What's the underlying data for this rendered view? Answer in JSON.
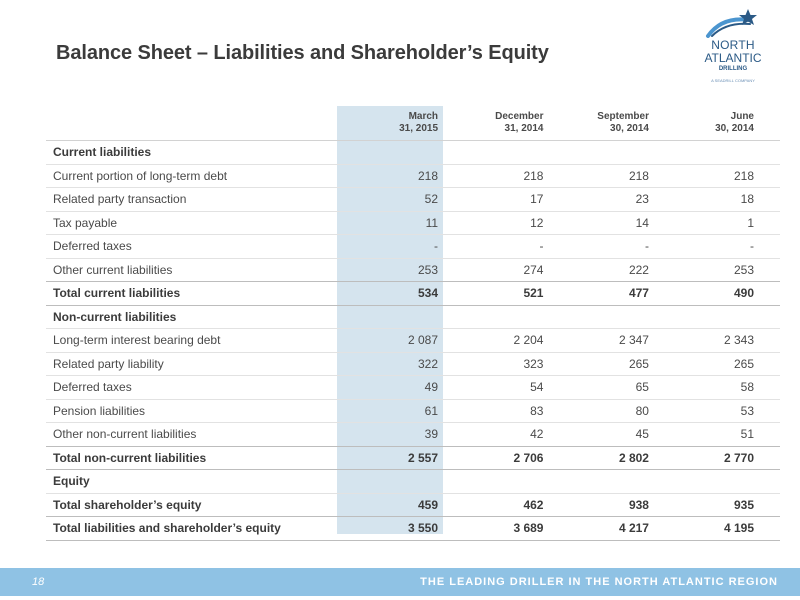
{
  "title": "Balance Sheet – Liabilities and Shareholder’s Equity",
  "logo": {
    "line1": "NORTH",
    "line2": "ATLANTIC",
    "line3": "DRILLING",
    "line4": "A SEADRILL COMPANY"
  },
  "columns": [
    {
      "line1": "March",
      "line2": "31, 2015"
    },
    {
      "line1": "December",
      "line2": "31, 2014"
    },
    {
      "line1": "September",
      "line2": "30, 2014"
    },
    {
      "line1": "June",
      "line2": "30, 2014"
    }
  ],
  "rows": [
    {
      "label": "Current liabilities",
      "values": [
        "",
        "",
        "",
        ""
      ]
    },
    {
      "label": "Current portion of long-term debt",
      "values": [
        "218",
        "218",
        "218",
        "218"
      ]
    },
    {
      "label": "Related party transaction",
      "values": [
        "52",
        "17",
        "23",
        "18"
      ]
    },
    {
      "label": "Tax payable",
      "values": [
        "11",
        "12",
        "14",
        "1"
      ]
    },
    {
      "label": "Deferred taxes",
      "values": [
        "-",
        "-",
        "-",
        "-"
      ]
    },
    {
      "label": "Other current liabilities",
      "values": [
        "253",
        "274",
        "222",
        "253"
      ]
    },
    {
      "label": "Total current liabilities",
      "values": [
        "534",
        "521",
        "477",
        "490"
      ]
    },
    {
      "label": "Non-current liabilities",
      "values": [
        "",
        "",
        "",
        ""
      ]
    },
    {
      "label": "Long-term interest bearing debt",
      "values": [
        "2 087",
        "2 204",
        "2 347",
        "2 343"
      ]
    },
    {
      "label": "Related party liability",
      "values": [
        "322",
        "323",
        "265",
        "265"
      ]
    },
    {
      "label": "Deferred taxes",
      "values": [
        "49",
        "54",
        "65",
        "58"
      ]
    },
    {
      "label": "Pension liabilities",
      "values": [
        "61",
        "83",
        "80",
        "53"
      ]
    },
    {
      "label": "Other non-current liabilities",
      "values": [
        "39",
        "42",
        "45",
        "51"
      ]
    },
    {
      "label": "Total non-current liabilities",
      "values": [
        "2 557",
        "2 706",
        "2 802",
        "2 770"
      ]
    },
    {
      "label": "Equity",
      "values": [
        "",
        "",
        "",
        ""
      ]
    },
    {
      "label": "Total shareholder’s equity",
      "values": [
        "459",
        "462",
        "938",
        "935"
      ]
    },
    {
      "label": "Total liabilities and shareholder’s equity",
      "values": [
        "3 550",
        "3 689",
        "4 217",
        "4 195"
      ]
    }
  ],
  "footer": {
    "page_number": "18",
    "tagline": "THE LEADING DRILLER IN THE NORTH ATLANTIC REGION"
  },
  "colors": {
    "highlight_column": "#d5e4ee",
    "footer_band": "#8fc2e4",
    "logo_blue": "#2b5a86"
  }
}
